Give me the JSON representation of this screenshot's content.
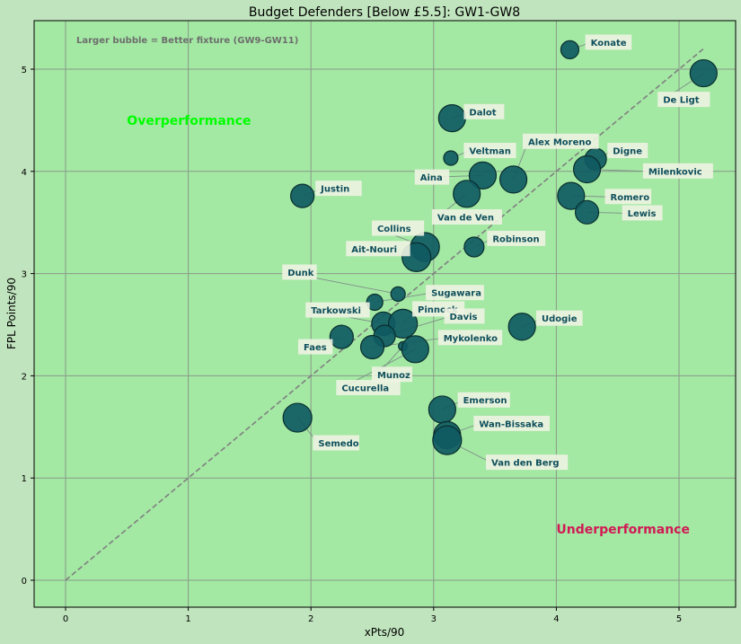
{
  "chart_data": {
    "type": "scatter",
    "title": "Budget Defenders [Below £5.5]: GW1-GW8",
    "xlabel": "xPts/90",
    "ylabel": "FPL Points/90",
    "xlim": [
      -0.25,
      5.47
    ],
    "ylim": [
      -0.26,
      5.47
    ],
    "xticks": [
      0,
      1,
      2,
      3,
      4,
      5
    ],
    "yticks": [
      0,
      1,
      2,
      3,
      4,
      5
    ],
    "grid": true,
    "note": "Larger bubble = Better fixture (GW9-GW11)",
    "annotations": [
      {
        "text": "Overperformance",
        "x": 0.5,
        "y": 4.5,
        "color": "#00ff00"
      },
      {
        "text": "Underperformance",
        "x": 4.0,
        "y": 0.5,
        "color": "#d11a55"
      }
    ],
    "reference_line": {
      "from": [
        0,
        0
      ],
      "to": [
        5.2,
        5.2
      ],
      "style": "dashed",
      "color": "#808080"
    },
    "colors": {
      "figure_bg": "#c0e4bd",
      "plot_bg": "#a3e8a3",
      "bubble": "#0f5a62",
      "bubble_edge": "#0a2e2e",
      "label_text": "#0f4f5c",
      "label_box": "#eef3e2",
      "grid": "#8a9a8a"
    },
    "points": [
      {
        "name": "Konate",
        "x": 4.11,
        "y": 5.19,
        "size": 10,
        "lx": 4.28,
        "ly": 5.26
      },
      {
        "name": "De Ligt",
        "x": 5.2,
        "y": 4.96,
        "size": 15,
        "lx": 4.87,
        "ly": 4.7
      },
      {
        "name": "Dalot",
        "x": 3.15,
        "y": 4.52,
        "size": 15,
        "lx": 3.29,
        "ly": 4.58
      },
      {
        "name": "Veltman",
        "x": 3.14,
        "y": 4.13,
        "size": 8,
        "lx": 3.29,
        "ly": 4.2
      },
      {
        "name": "Alex Moreno",
        "x": 3.65,
        "y": 3.92,
        "size": 15,
        "lx": 3.77,
        "ly": 4.29
      },
      {
        "name": "Digne",
        "x": 4.32,
        "y": 4.12,
        "size": 12,
        "lx": 4.46,
        "ly": 4.2
      },
      {
        "name": "Milenkovic",
        "x": 4.25,
        "y": 4.02,
        "size": 15,
        "lx": 4.75,
        "ly": 4.0
      },
      {
        "name": "Aina",
        "x": 3.4,
        "y": 3.96,
        "size": 15,
        "lx": 2.89,
        "ly": 3.94
      },
      {
        "name": "Van de Ven",
        "x": 3.27,
        "y": 3.78,
        "size": 15,
        "lx": 3.03,
        "ly": 3.55
      },
      {
        "name": "Romero",
        "x": 4.12,
        "y": 3.76,
        "size": 15,
        "lx": 4.44,
        "ly": 3.75
      },
      {
        "name": "Lewis",
        "x": 4.25,
        "y": 3.6,
        "size": 13,
        "lx": 4.58,
        "ly": 3.59
      },
      {
        "name": "Justin",
        "x": 1.93,
        "y": 3.76,
        "size": 13,
        "lx": 2.08,
        "ly": 3.83
      },
      {
        "name": "Collins",
        "x": 2.93,
        "y": 3.26,
        "size": 16,
        "lx": 2.54,
        "ly": 3.44
      },
      {
        "name": "Ait-Nouri",
        "x": 2.86,
        "y": 3.16,
        "size": 16,
        "lx": 2.33,
        "ly": 3.24
      },
      {
        "name": "Robinson",
        "x": 3.33,
        "y": 3.26,
        "size": 11,
        "lx": 3.48,
        "ly": 3.34
      },
      {
        "name": "Dunk",
        "x": 2.71,
        "y": 2.8,
        "size": 8,
        "lx": 1.81,
        "ly": 3.01
      },
      {
        "name": "Sugawara",
        "x": 2.52,
        "y": 2.72,
        "size": 9,
        "lx": 2.98,
        "ly": 2.81
      },
      {
        "name": "Tarkowski",
        "x": 2.59,
        "y": 2.51,
        "size": 13,
        "lx": 2.0,
        "ly": 2.64
      },
      {
        "name": "Pinnock",
        "x": 2.75,
        "y": 2.51,
        "size": 16,
        "lx": 2.87,
        "ly": 2.65
      },
      {
        "name": "Davis",
        "x": 2.6,
        "y": 2.39,
        "size": 12,
        "lx": 3.13,
        "ly": 2.58
      },
      {
        "name": "Udogie",
        "x": 3.72,
        "y": 2.48,
        "size": 15,
        "lx": 3.88,
        "ly": 2.56
      },
      {
        "name": "Faes",
        "x": 2.25,
        "y": 2.38,
        "size": 13,
        "lx": 1.94,
        "ly": 2.28
      },
      {
        "name": "Mykolenko",
        "x": 2.5,
        "y": 2.28,
        "size": 13,
        "lx": 3.08,
        "ly": 2.37
      },
      {
        "name": "Munoz",
        "x": 2.75,
        "y": 2.29,
        "size": 5,
        "lx": 2.54,
        "ly": 2.01
      },
      {
        "name": "Cucurella",
        "x": 2.85,
        "y": 2.26,
        "size": 15,
        "lx": 2.25,
        "ly": 1.88
      },
      {
        "name": "Semedo",
        "x": 1.89,
        "y": 1.59,
        "size": 16,
        "lx": 2.06,
        "ly": 1.34
      },
      {
        "name": "Emerson",
        "x": 3.07,
        "y": 1.67,
        "size": 15,
        "lx": 3.24,
        "ly": 1.76
      },
      {
        "name": "Wan-Bissaka",
        "x": 3.11,
        "y": 1.42,
        "size": 15,
        "lx": 3.37,
        "ly": 1.53
      },
      {
        "name": "Van den Berg",
        "x": 3.11,
        "y": 1.37,
        "size": 16,
        "lx": 3.47,
        "ly": 1.15
      }
    ]
  }
}
